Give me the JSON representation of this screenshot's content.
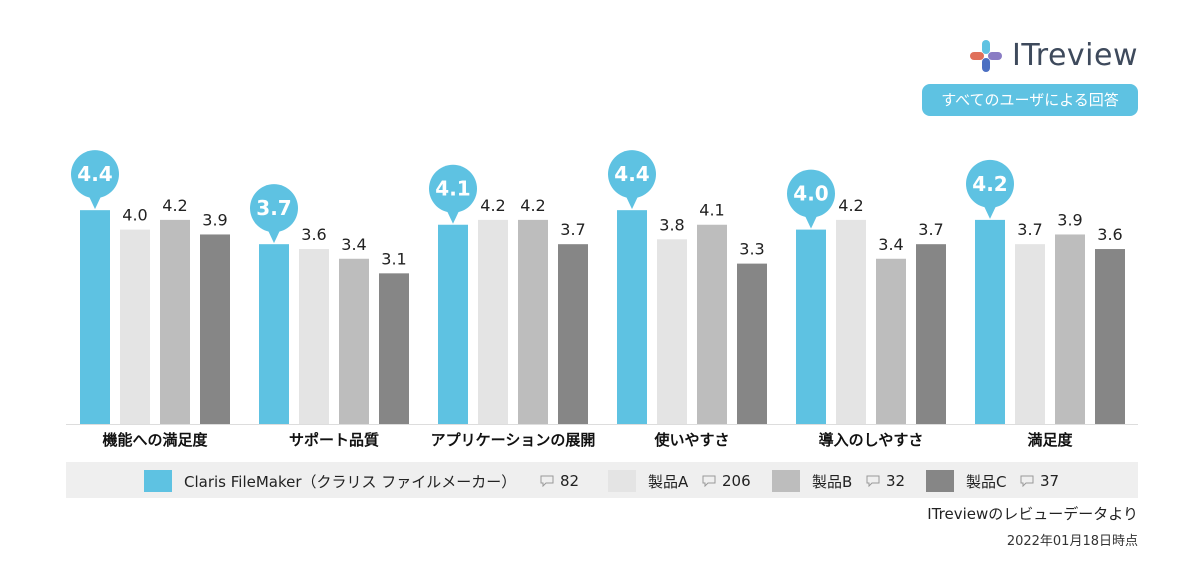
{
  "brand": {
    "name": "ITreview",
    "mark_colors": [
      "#e0705a",
      "#5ec2e2",
      "#8a7cc4",
      "#4b6fc2"
    ]
  },
  "filter_badge": "すべてのユーザによる回答",
  "chart_data": {
    "type": "bar",
    "title": "",
    "xlabel": "",
    "ylabel": "",
    "ylim": [
      0,
      5
    ],
    "grid": false,
    "categories": [
      "機能への満足度",
      "サポート品質",
      "アプリケーションの展開",
      "使いやすさ",
      "導入のしやすさ",
      "満足度"
    ],
    "series": [
      {
        "name": "Claris FileMaker（クラリス ファイルメーカー）",
        "color": "#5ec2e2",
        "values": [
          4.4,
          3.7,
          4.1,
          4.4,
          4.0,
          4.2
        ],
        "reviews": "82",
        "highlight": true
      },
      {
        "name": "製品A",
        "color": "#e4e4e4",
        "values": [
          4.0,
          3.6,
          4.2,
          3.8,
          4.2,
          3.7
        ],
        "reviews": "206"
      },
      {
        "name": "製品B",
        "color": "#bdbdbd",
        "values": [
          4.2,
          3.4,
          4.2,
          4.1,
          3.4,
          3.9
        ],
        "reviews": "32"
      },
      {
        "name": "製品C",
        "color": "#868686",
        "values": [
          3.9,
          3.1,
          3.7,
          3.3,
          3.7,
          3.6
        ],
        "reviews": "37"
      }
    ],
    "legend_position": "bottom"
  },
  "source_note": "ITreviewのレビューデータより",
  "as_of_note": "2022年01月18日時点"
}
